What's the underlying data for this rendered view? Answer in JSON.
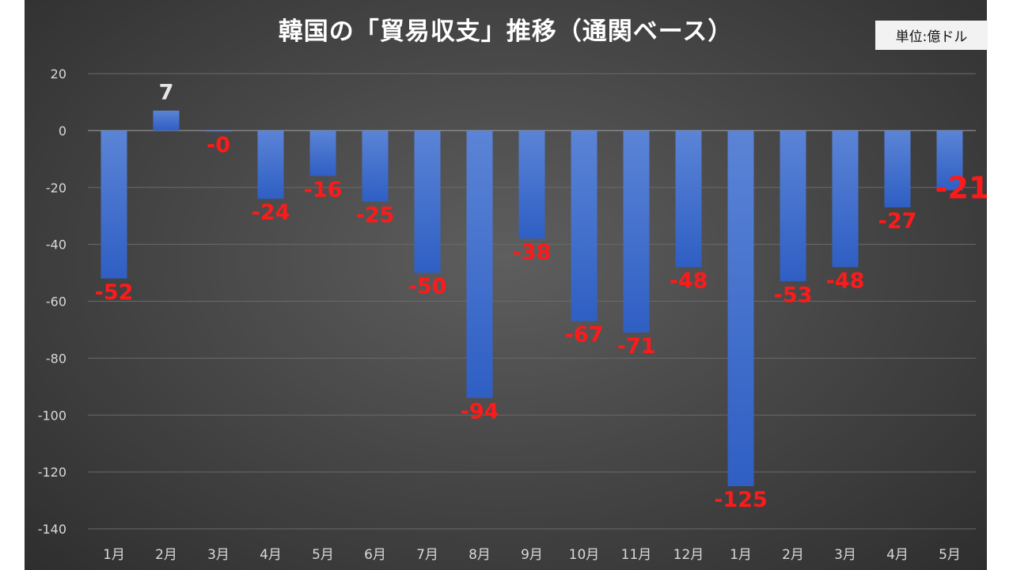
{
  "chart_data": {
    "type": "bar",
    "title": "韓国の「貿易収支」推移（通関ベース）",
    "unit_label": "単位:億ドル",
    "categories": [
      "1月",
      "2月",
      "3月",
      "4月",
      "5月",
      "6月",
      "7月",
      "8月",
      "9月",
      "10月",
      "11月",
      "12月",
      "1月",
      "2月",
      "3月",
      "4月",
      "5月"
    ],
    "values": [
      -52,
      7,
      -0.3,
      -24,
      -16,
      -25,
      -50,
      -94,
      -38,
      -67,
      -71,
      -48,
      -125,
      -53,
      -48,
      -27,
      -21
    ],
    "data_labels": [
      "-52",
      "7",
      "-0",
      "-24",
      "-16",
      "-25",
      "-50",
      "-94",
      "-38",
      "-67",
      "-71",
      "-48",
      "-125",
      "-53",
      "-48",
      "-27",
      "-21"
    ],
    "yticks": [
      "20",
      "0",
      "-20",
      "-40",
      "-60",
      "-80",
      "-100",
      "-120",
      "-140"
    ],
    "ylim": [
      -140,
      20
    ],
    "xlabel": "",
    "ylabel": "",
    "grid": true,
    "legend": "none",
    "colors": {
      "bar_top": "#5b84d6",
      "bar_bottom": "#2f5fc4",
      "negative_label": "#ff1a1a",
      "positive_label": "#e6e6e6",
      "tick_label": "#d9d9d9",
      "gridline": "#6a6a6a"
    }
  }
}
